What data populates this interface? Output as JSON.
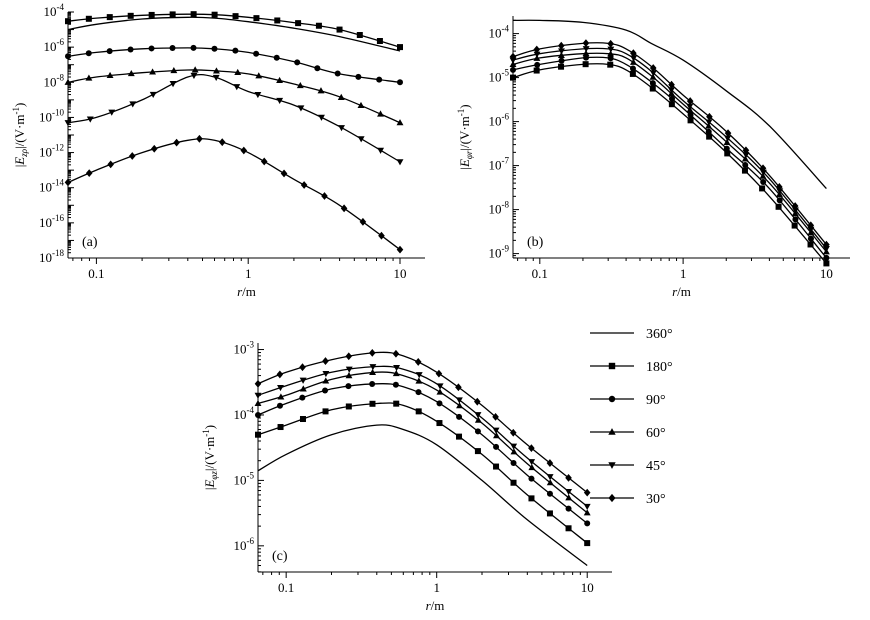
{
  "chart_data": [
    {
      "type": "line",
      "panel_label": "(a)",
      "x_scale": "log",
      "y_scale": "log",
      "xlim": [
        0.065,
        10
      ],
      "ylim_exp": [
        -18,
        -4
      ],
      "x_ticks": [
        "0.1",
        "1",
        "10"
      ],
      "y_ticks": [
        "-18",
        "-16",
        "-14",
        "-12",
        "-10",
        "-8",
        "-6",
        "-4"
      ],
      "ylabel": {
        "pre": "|",
        "E": "E",
        "sub": "zρ",
        "post": "|/(V·m",
        "sup": "-1",
        "close": ")"
      },
      "xlabel": {
        "r": "r",
        "unit": "/m"
      },
      "series": [
        {
          "name": "360°",
          "marker": "none",
          "x": [
            0.065,
            0.1,
            0.2,
            0.4,
            0.6,
            1,
            2,
            4,
            10
          ],
          "y": [
            1e-05,
            2e-05,
            4e-05,
            5e-05,
            4.5e-05,
            2.8e-05,
            1.2e-05,
            4e-06,
            6e-07
          ]
        },
        {
          "name": "180°",
          "marker": "square",
          "x": [
            0.065,
            0.1,
            0.2,
            0.4,
            0.6,
            1,
            2,
            4,
            10
          ],
          "y": [
            3e-05,
            4.5e-05,
            6.5e-05,
            7.5e-05,
            7e-05,
            5e-05,
            2.5e-05,
            1e-05,
            1e-06
          ]
        },
        {
          "name": "90°",
          "marker": "circle",
          "x": [
            0.065,
            0.1,
            0.2,
            0.4,
            0.6,
            1,
            2,
            4,
            10
          ],
          "y": [
            3e-07,
            5e-07,
            8e-07,
            9e-07,
            8e-07,
            5e-07,
            1.5e-07,
            3e-08,
            1e-08
          ]
        },
        {
          "name": "60°",
          "marker": "triangle-up",
          "x": [
            0.065,
            0.1,
            0.2,
            0.4,
            0.6,
            1,
            2,
            4,
            10
          ],
          "y": [
            1e-08,
            2e-08,
            3.5e-08,
            5e-08,
            4.5e-08,
            3e-08,
            8e-09,
            1.5e-09,
            5e-11
          ]
        },
        {
          "name": "45°",
          "marker": "triangle-down",
          "x": [
            0.065,
            0.1,
            0.2,
            0.4,
            0.6,
            1,
            2,
            4,
            10
          ],
          "y": [
            5e-11,
            1e-10,
            1e-09,
            2e-08,
            2e-08,
            3e-09,
            5e-10,
            3e-11,
            3e-13
          ]
        },
        {
          "name": "30°",
          "marker": "diamond",
          "x": [
            0.065,
            0.1,
            0.2,
            0.4,
            0.6,
            1,
            2,
            4,
            10
          ],
          "y": [
            2e-14,
            1e-13,
            1e-12,
            5e-12,
            5e-12,
            1e-12,
            3e-14,
            1e-15,
            3e-18
          ]
        }
      ]
    },
    {
      "type": "line",
      "panel_label": "(b)",
      "x_scale": "log",
      "y_scale": "log",
      "xlim": [
        0.065,
        10
      ],
      "ylim_exp": [
        -9.1,
        -3.6
      ],
      "x_ticks": [
        "0.1",
        "1",
        "10"
      ],
      "y_ticks": [
        "-9",
        "-8",
        "-7",
        "-6",
        "-5",
        "-4"
      ],
      "ylabel": {
        "pre": "|",
        "E": "E",
        "sub": "φr",
        "post": "|/(V·m",
        "sup": "-1",
        "close": ")"
      },
      "xlabel": {
        "r": "r",
        "unit": "/m"
      },
      "series": [
        {
          "name": "360°",
          "marker": "none",
          "x": [
            0.065,
            0.1,
            0.2,
            0.4,
            0.6,
            1,
            2,
            4,
            10
          ],
          "y": [
            0.0002,
            0.0002,
            0.00018,
            0.00012,
            6e-05,
            2.5e-05,
            5e-06,
            8e-07,
            3e-08
          ]
        },
        {
          "name": "180°",
          "marker": "square",
          "x": [
            0.065,
            0.1,
            0.2,
            0.3,
            0.4,
            0.6,
            1,
            2,
            4,
            10
          ],
          "y": [
            1e-05,
            1.5e-05,
            2e-05,
            2e-05,
            1.5e-05,
            6e-06,
            1.5e-06,
            2e-07,
            2e-08,
            6e-10
          ]
        },
        {
          "name": "90°",
          "marker": "circle",
          "x": [
            0.065,
            0.1,
            0.2,
            0.3,
            0.4,
            0.6,
            1,
            2,
            4,
            10
          ],
          "y": [
            1.5e-05,
            2e-05,
            2.8e-05,
            2.8e-05,
            2e-05,
            8e-06,
            2e-06,
            2.5e-07,
            3e-08,
            8e-10
          ]
        },
        {
          "name": "60°",
          "marker": "triangle-up",
          "x": [
            0.065,
            0.1,
            0.2,
            0.3,
            0.4,
            0.6,
            1,
            2,
            4,
            10
          ],
          "y": [
            2e-05,
            2.8e-05,
            3.5e-05,
            3.5e-05,
            2.8e-05,
            1.1e-05,
            2.5e-06,
            3.5e-07,
            4e-08,
            1.1e-09
          ]
        },
        {
          "name": "45°",
          "marker": "triangle-down",
          "x": [
            0.065,
            0.1,
            0.2,
            0.3,
            0.4,
            0.6,
            1,
            2,
            4,
            10
          ],
          "y": [
            2.5e-05,
            3.5e-05,
            4.5e-05,
            4.5e-05,
            3.5e-05,
            1.4e-05,
            3e-06,
            4.5e-07,
            5e-08,
            1.3e-09
          ]
        },
        {
          "name": "30°",
          "marker": "diamond",
          "x": [
            0.065,
            0.1,
            0.2,
            0.3,
            0.4,
            0.6,
            1,
            2,
            4,
            10
          ],
          "y": [
            3e-05,
            4.5e-05,
            6e-05,
            6e-05,
            4.5e-05,
            1.8e-05,
            4e-06,
            6e-07,
            6e-08,
            1.6e-09
          ]
        }
      ]
    },
    {
      "type": "line",
      "panel_label": "(c)",
      "x_scale": "log",
      "y_scale": "log",
      "xlim": [
        0.065,
        10
      ],
      "ylim_exp": [
        -6.4,
        -2.9
      ],
      "x_ticks": [
        "0.1",
        "1",
        "10"
      ],
      "y_ticks": [
        "-6",
        "-5",
        "-4",
        "-3"
      ],
      "ylabel": {
        "pre": "|",
        "E": "E",
        "sub": "φz",
        "post": "|/(V·m",
        "sup": "-1",
        "close": ")"
      },
      "xlabel": {
        "r": "r",
        "unit": "/m"
      },
      "series": [
        {
          "name": "360°",
          "marker": "none",
          "x": [
            0.065,
            0.1,
            0.2,
            0.4,
            0.6,
            1,
            2,
            4,
            10
          ],
          "y": [
            1.4e-05,
            2.5e-05,
            5e-05,
            7e-05,
            6e-05,
            3.5e-05,
            1e-05,
            2.5e-06,
            5e-07
          ]
        },
        {
          "name": "180°",
          "marker": "square",
          "x": [
            0.065,
            0.1,
            0.2,
            0.4,
            0.6,
            1,
            2,
            4,
            10
          ],
          "y": [
            5e-05,
            7e-05,
            0.00012,
            0.00015,
            0.00014,
            8e-05,
            2.5e-05,
            6e-06,
            1.1e-06
          ]
        },
        {
          "name": "90°",
          "marker": "circle",
          "x": [
            0.065,
            0.1,
            0.2,
            0.4,
            0.6,
            1,
            2,
            4,
            10
          ],
          "y": [
            0.0001,
            0.00015,
            0.00025,
            0.0003,
            0.00027,
            0.00016,
            5e-05,
            1.2e-05,
            2.2e-06
          ]
        },
        {
          "name": "60°",
          "marker": "triangle-up",
          "x": [
            0.065,
            0.1,
            0.2,
            0.4,
            0.6,
            1,
            2,
            4,
            10
          ],
          "y": [
            0.00015,
            0.0002,
            0.00035,
            0.00045,
            0.0004,
            0.00024,
            7.5e-05,
            1.8e-05,
            3.2e-06
          ]
        },
        {
          "name": "45°",
          "marker": "triangle-down",
          "x": [
            0.065,
            0.1,
            0.2,
            0.4,
            0.6,
            1,
            2,
            4,
            10
          ],
          "y": [
            0.0002,
            0.00028,
            0.00045,
            0.00055,
            0.0005,
            0.0003,
            9e-05,
            2.2e-05,
            4e-06
          ]
        },
        {
          "name": "30°",
          "marker": "diamond",
          "x": [
            0.065,
            0.1,
            0.2,
            0.4,
            0.6,
            1,
            2,
            4,
            10
          ],
          "y": [
            0.0003,
            0.00045,
            0.0007,
            0.0009,
            0.0008,
            0.00045,
            0.00014,
            3.5e-05,
            6.5e-06
          ]
        }
      ]
    }
  ],
  "legend": {
    "placement": "right of panel (c)",
    "items": [
      {
        "label": "360°",
        "marker": "none"
      },
      {
        "label": "180°",
        "marker": "square"
      },
      {
        "label": "90°",
        "marker": "circle"
      },
      {
        "label": "60°",
        "marker": "triangle-up"
      },
      {
        "label": "45°",
        "marker": "triangle-down"
      },
      {
        "label": "30°",
        "marker": "diamond"
      }
    ]
  }
}
